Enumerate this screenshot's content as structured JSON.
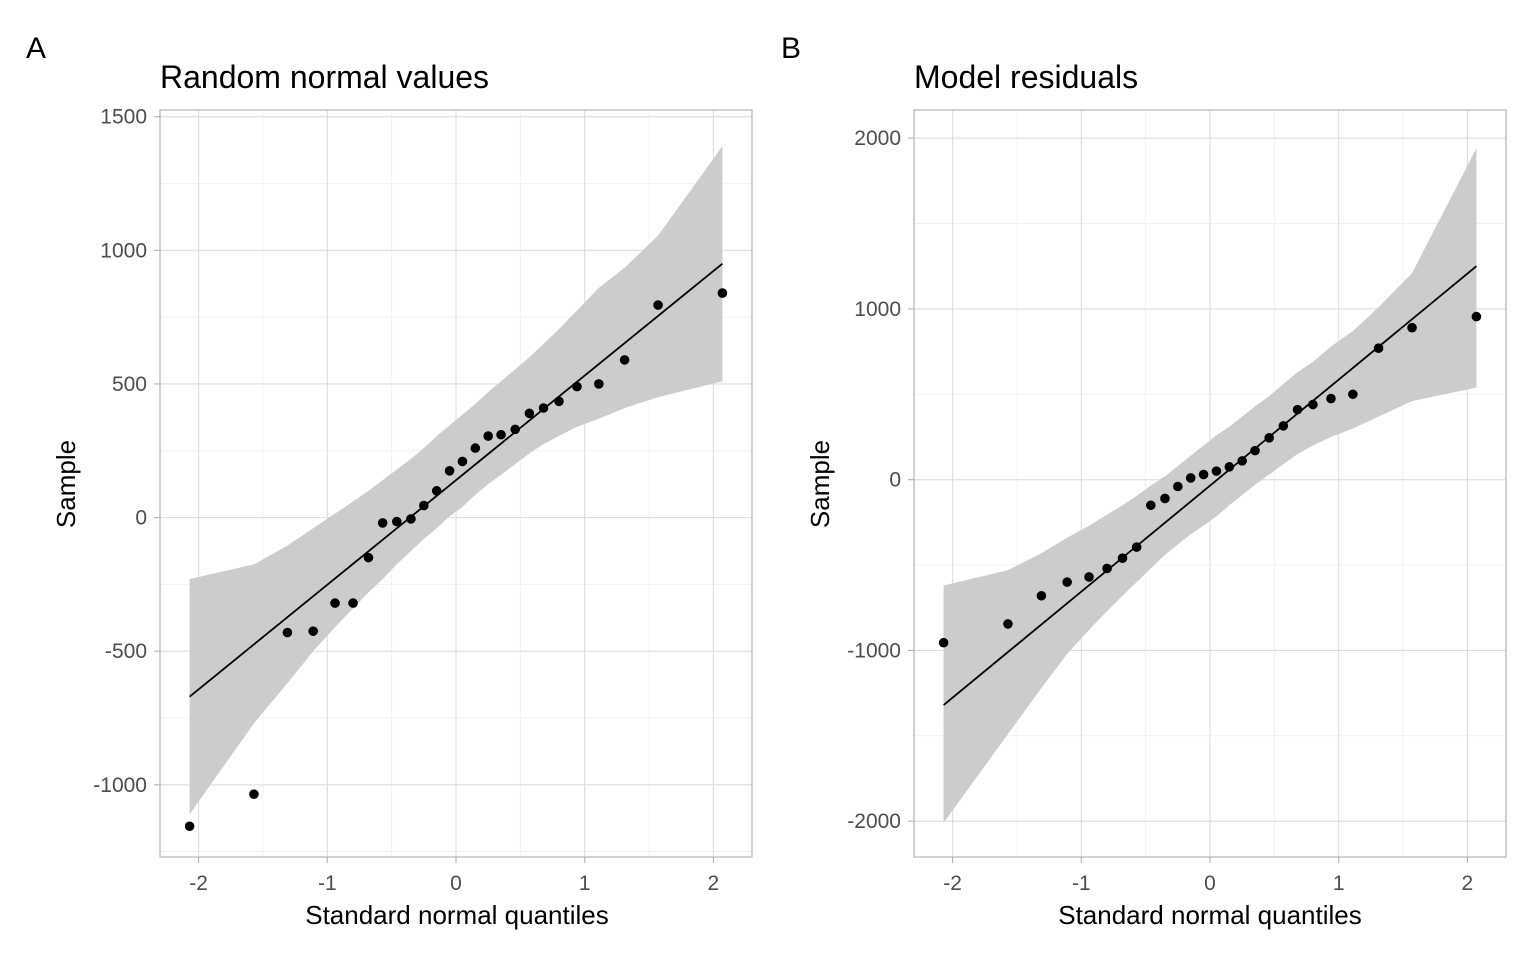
{
  "chart_data": [
    {
      "type": "scatter",
      "panel_label": "A",
      "title": "Random normal values",
      "xlabel": "Standard normal quantiles",
      "ylabel": "Sample",
      "xlim": [
        -2.3,
        2.3
      ],
      "ylim": [
        -1270,
        1525
      ],
      "x_ticks": [
        -2,
        -1,
        0,
        1,
        2
      ],
      "x_tick_labels": [
        "-2",
        "-1",
        "0",
        "1",
        "2"
      ],
      "y_ticks": [
        -1000,
        -500,
        0,
        500,
        1000,
        1500
      ],
      "y_tick_labels": [
        "-1000",
        "-500",
        "0",
        "500",
        "1000",
        "1500"
      ],
      "grid": true,
      "x": [
        -2.07,
        -1.57,
        -1.31,
        -1.11,
        -0.94,
        -0.8,
        -0.68,
        -0.57,
        -0.46,
        -0.35,
        -0.25,
        -0.15,
        -0.05,
        0.05,
        0.15,
        0.25,
        0.35,
        0.46,
        0.57,
        0.68,
        0.8,
        0.94,
        1.11,
        1.31,
        1.57,
        2.07
      ],
      "y": [
        -1155,
        -1035,
        -430,
        -425,
        -320,
        -320,
        -150,
        -20,
        -15,
        -5,
        45,
        100,
        175,
        210,
        260,
        305,
        310,
        330,
        390,
        410,
        435,
        490,
        500,
        590,
        795,
        840
      ],
      "reference_line": {
        "x": [
          -2.07,
          2.07
        ],
        "y": [
          -670,
          950
        ]
      },
      "confidence_band": {
        "x": [
          -2.07,
          -1.57,
          -1.31,
          -1.11,
          -0.94,
          -0.8,
          -0.68,
          -0.57,
          -0.46,
          -0.35,
          -0.25,
          -0.15,
          -0.05,
          0.05,
          0.15,
          0.25,
          0.35,
          0.46,
          0.57,
          0.68,
          0.8,
          0.94,
          1.11,
          1.31,
          1.57,
          2.07
        ],
        "lower": [
          -1110,
          -770,
          -620,
          -500,
          -410,
          -340,
          -280,
          -230,
          -175,
          -125,
          -80,
          -40,
          5,
          40,
          85,
          125,
          160,
          200,
          240,
          275,
          305,
          340,
          370,
          410,
          450,
          510
        ],
        "upper": [
          -230,
          -175,
          -105,
          -40,
          15,
          60,
          100,
          140,
          180,
          220,
          260,
          305,
          345,
          385,
          425,
          470,
          510,
          555,
          600,
          650,
          705,
          775,
          860,
          935,
          1055,
          1390
        ]
      }
    },
    {
      "type": "scatter",
      "panel_label": "B",
      "title": "Model residuals",
      "xlabel": "Standard normal quantiles",
      "ylabel": "Sample",
      "xlim": [
        -2.3,
        2.3
      ],
      "ylim": [
        -2210,
        2165
      ],
      "x_ticks": [
        -2,
        -1,
        0,
        1,
        2
      ],
      "x_tick_labels": [
        "-2",
        "-1",
        "0",
        "1",
        "2"
      ],
      "y_ticks": [
        -2000,
        -1000,
        0,
        1000,
        2000
      ],
      "y_tick_labels": [
        "-2000",
        "-1000",
        "0",
        "1000",
        "2000"
      ],
      "grid": true,
      "x": [
        -2.07,
        -1.57,
        -1.31,
        -1.11,
        -0.94,
        -0.8,
        -0.68,
        -0.57,
        -0.46,
        -0.35,
        -0.25,
        -0.15,
        -0.05,
        0.05,
        0.15,
        0.25,
        0.35,
        0.46,
        0.57,
        0.68,
        0.8,
        0.94,
        1.11,
        1.31,
        1.57,
        2.07
      ],
      "y": [
        -955,
        -845,
        -680,
        -600,
        -570,
        -520,
        -460,
        -395,
        -150,
        -110,
        -40,
        10,
        30,
        50,
        75,
        110,
        170,
        245,
        315,
        410,
        440,
        475,
        500,
        770,
        890,
        955
      ],
      "reference_line": {
        "x": [
          -2.07,
          2.07
        ],
        "y": [
          -1320,
          1250
        ]
      },
      "confidence_band": {
        "x": [
          -2.07,
          -1.57,
          -1.31,
          -1.11,
          -0.94,
          -0.8,
          -0.68,
          -0.57,
          -0.46,
          -0.35,
          -0.25,
          -0.15,
          -0.05,
          0.05,
          0.15,
          0.25,
          0.35,
          0.46,
          0.57,
          0.68,
          0.8,
          0.94,
          1.11,
          1.31,
          1.57,
          2.07
        ],
        "lower": [
          -2010,
          -1490,
          -1220,
          -1020,
          -880,
          -770,
          -680,
          -600,
          -520,
          -440,
          -380,
          -320,
          -270,
          -215,
          -150,
          -90,
          -30,
          30,
          90,
          150,
          200,
          250,
          300,
          370,
          460,
          540
        ],
        "upper": [
          -620,
          -530,
          -430,
          -340,
          -270,
          -205,
          -150,
          -95,
          -35,
          20,
          80,
          140,
          200,
          260,
          310,
          370,
          430,
          490,
          560,
          630,
          690,
          780,
          870,
          1010,
          1210,
          1940
        ]
      }
    }
  ]
}
